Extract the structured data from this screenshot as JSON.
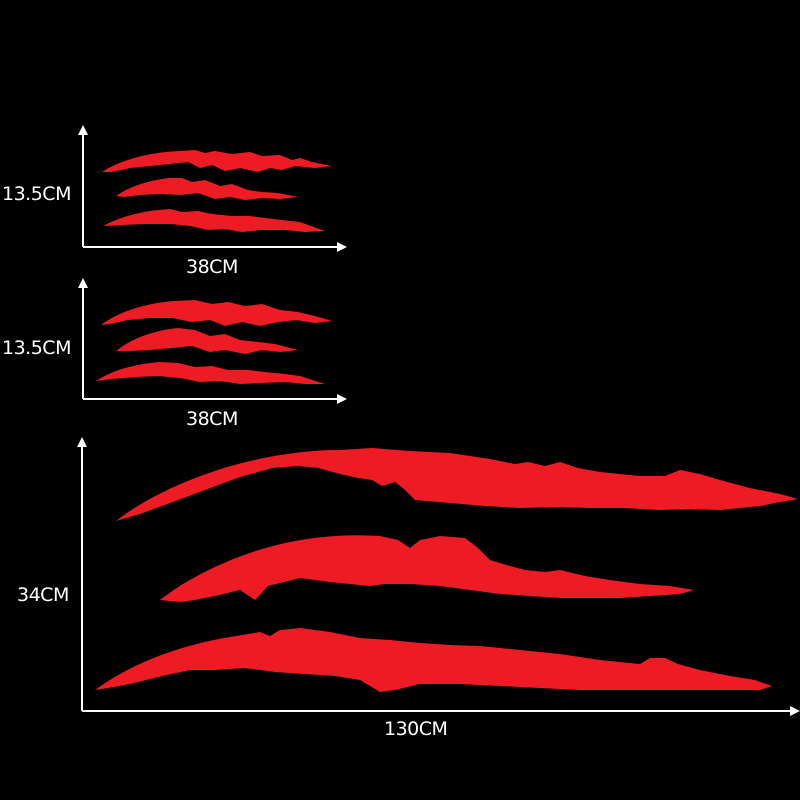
{
  "colors": {
    "background": "#000000",
    "decal": "#ed1c24",
    "axis": "#ffffff",
    "text": "#ffffff"
  },
  "sets": [
    {
      "height_label": "13.5CM",
      "width_label": "38CM",
      "strips": 3
    },
    {
      "height_label": "13.5CM",
      "width_label": "38CM",
      "strips": 3
    },
    {
      "height_label": "34CM",
      "width_label": "130CM",
      "strips": 3
    }
  ]
}
